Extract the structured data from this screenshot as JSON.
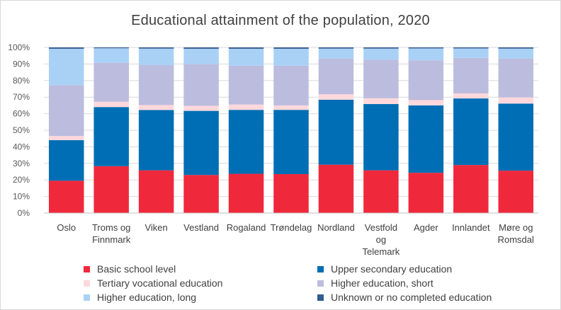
{
  "chart_data": {
    "type": "bar",
    "stacked": true,
    "percent_stacked": true,
    "title": "Educational attainment of the population, 2020",
    "xlabel": "",
    "ylabel": "",
    "ylim": [
      0,
      100
    ],
    "yticks": [
      "0%",
      "10%",
      "20%",
      "30%",
      "40%",
      "50%",
      "60%",
      "70%",
      "80%",
      "90%",
      "100%"
    ],
    "grid": true,
    "legend_position": "bottom",
    "categories": [
      [
        "Oslo"
      ],
      [
        "Troms og",
        "Finnmark"
      ],
      [
        "Viken"
      ],
      [
        "Vestland"
      ],
      [
        "Rogaland"
      ],
      [
        "Trøndelag"
      ],
      [
        "Nordland"
      ],
      [
        "Vestfold",
        "og",
        "Telemark"
      ],
      [
        "Agder"
      ],
      [
        "Innlandet"
      ],
      [
        "Møre og",
        "Romsdal"
      ]
    ],
    "series": [
      {
        "name": "Basic school level",
        "color": "#f0283c",
        "values": [
          19.5,
          28.3,
          25.8,
          23.0,
          23.7,
          23.5,
          29.2,
          25.8,
          24.3,
          29.0,
          25.6
        ]
      },
      {
        "name": "Upper secondary education",
        "color": "#006eb4",
        "values": [
          24.5,
          35.7,
          36.4,
          38.7,
          38.6,
          38.8,
          39.2,
          40.0,
          40.7,
          40.2,
          40.5
        ]
      },
      {
        "name": "Tertiary vocational education",
        "color": "#ffd8dc",
        "values": [
          2.5,
          3.2,
          3.0,
          3.0,
          3.2,
          2.7,
          3.3,
          3.5,
          3.2,
          3.0,
          3.7
        ]
      },
      {
        "name": "Higher education, short",
        "color": "#bcbcde",
        "values": [
          30.7,
          23.5,
          24.1,
          25.2,
          23.5,
          24.0,
          21.5,
          23.2,
          24.0,
          21.5,
          23.5
        ]
      },
      {
        "name": "Higher education, long",
        "color": "#a9d1f5",
        "values": [
          22.0,
          8.8,
          10.0,
          9.3,
          10.2,
          10.2,
          6.1,
          6.8,
          7.2,
          5.7,
          6.0
        ]
      },
      {
        "name": "Unknown or no completed education",
        "color": "#2f5b8f",
        "values": [
          0.8,
          0.5,
          0.7,
          0.8,
          0.8,
          0.8,
          0.7,
          0.7,
          0.6,
          0.6,
          0.7
        ]
      }
    ]
  }
}
